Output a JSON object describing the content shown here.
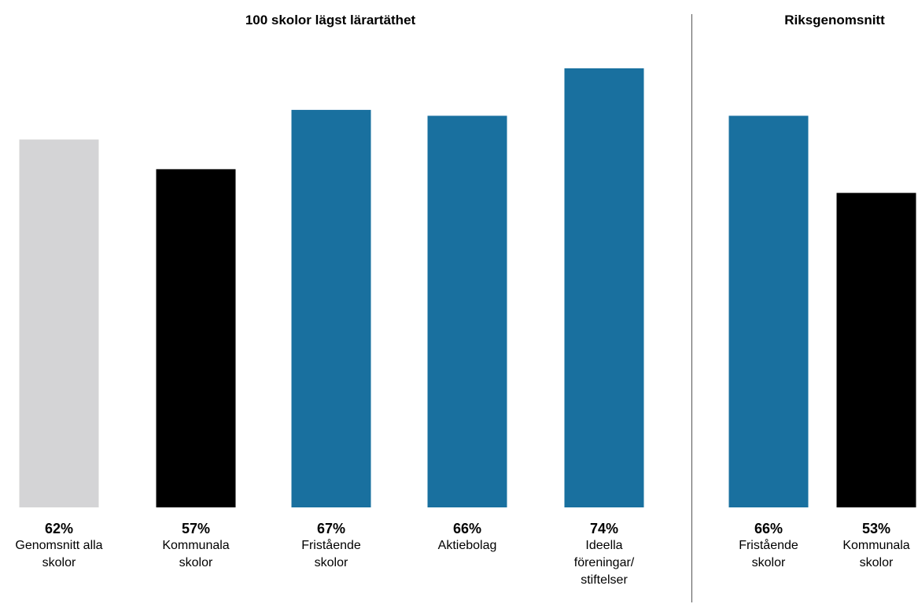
{
  "chart_data": [
    {
      "type": "bar",
      "title": "100 skolor lägst lärartäthet",
      "categories": [
        "Genomsnitt alla\nskolor",
        "Kommunala\nskolor",
        "Fristående\nskolor",
        "Aktiebolag",
        "Ideella\nföreningar/\nstiftelser"
      ],
      "values": [
        62,
        57,
        67,
        66,
        74
      ],
      "value_labels": [
        "62%",
        "57%",
        "67%",
        "66%",
        "74%"
      ],
      "colors": [
        "#d4d4d6",
        "#000000",
        "#19709f",
        "#19709f",
        "#19709f"
      ],
      "ylim": [
        0,
        80
      ],
      "grid": false
    },
    {
      "type": "bar",
      "title": "Riksgenomsnitt",
      "categories": [
        "Fristående\nskolor",
        "Kommunala\nskolor"
      ],
      "values": [
        66,
        53
      ],
      "value_labels": [
        "66%",
        "53%"
      ],
      "colors": [
        "#19709f",
        "#000000"
      ],
      "ylim": [
        0,
        80
      ],
      "grid": false
    }
  ]
}
